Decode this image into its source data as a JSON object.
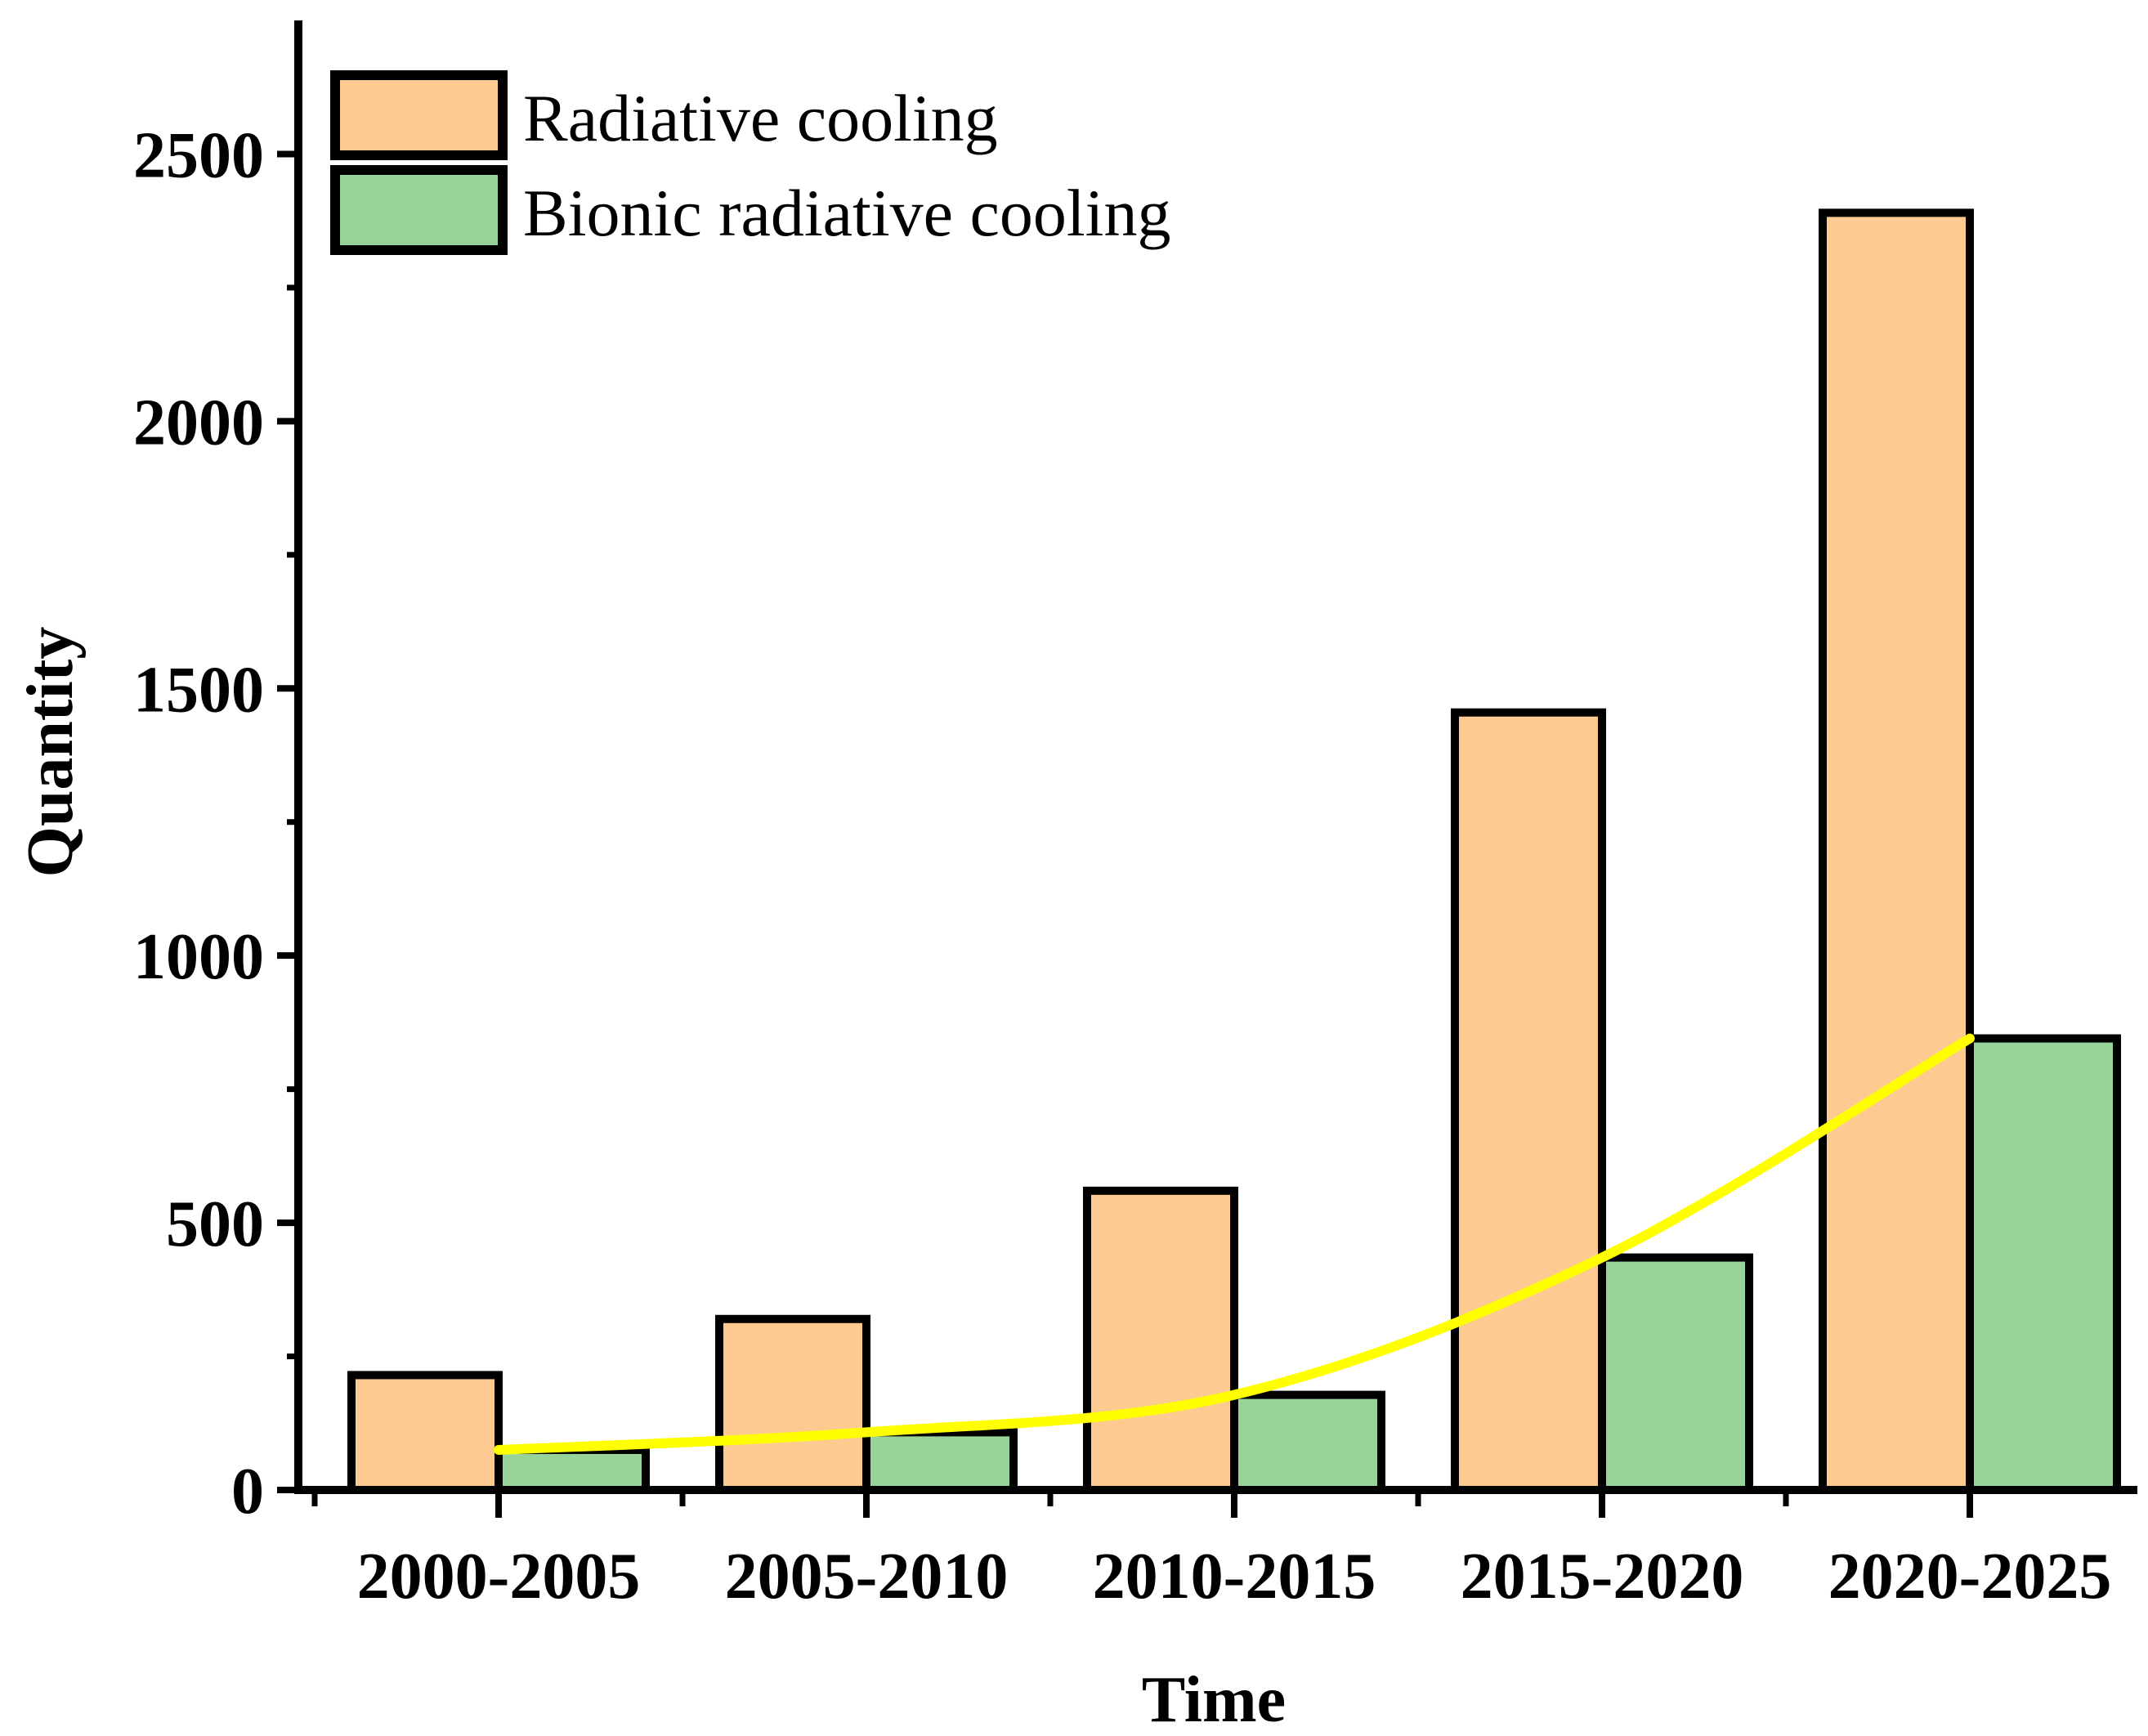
{
  "chart_data": {
    "type": "bar",
    "title": "",
    "xlabel": "Time",
    "ylabel": "Quantity",
    "categories": [
      "2000-2005",
      "2005-2010",
      "2010-2015",
      "2015-2020",
      "2020-2025"
    ],
    "series": [
      {
        "name": "Radiative cooling",
        "color": "#FDCB92",
        "values": [
          215,
          320,
          560,
          1455,
          2390
        ]
      },
      {
        "name": "Bionic radiative cooling",
        "color": "#98D49A",
        "values": [
          75,
          108,
          178,
          435,
          845
        ]
      }
    ],
    "trend_line": {
      "color": "#FFFF00",
      "values": [
        75,
        108,
        178,
        435,
        845
      ]
    },
    "ylim": [
      0,
      2750
    ],
    "yticks": [
      "0",
      "500",
      "1000",
      "1500",
      "2000",
      "2500"
    ],
    "ytick_values": [
      0,
      500,
      1000,
      1500,
      2000,
      2500
    ],
    "legend": "top-left",
    "grid": false
  }
}
